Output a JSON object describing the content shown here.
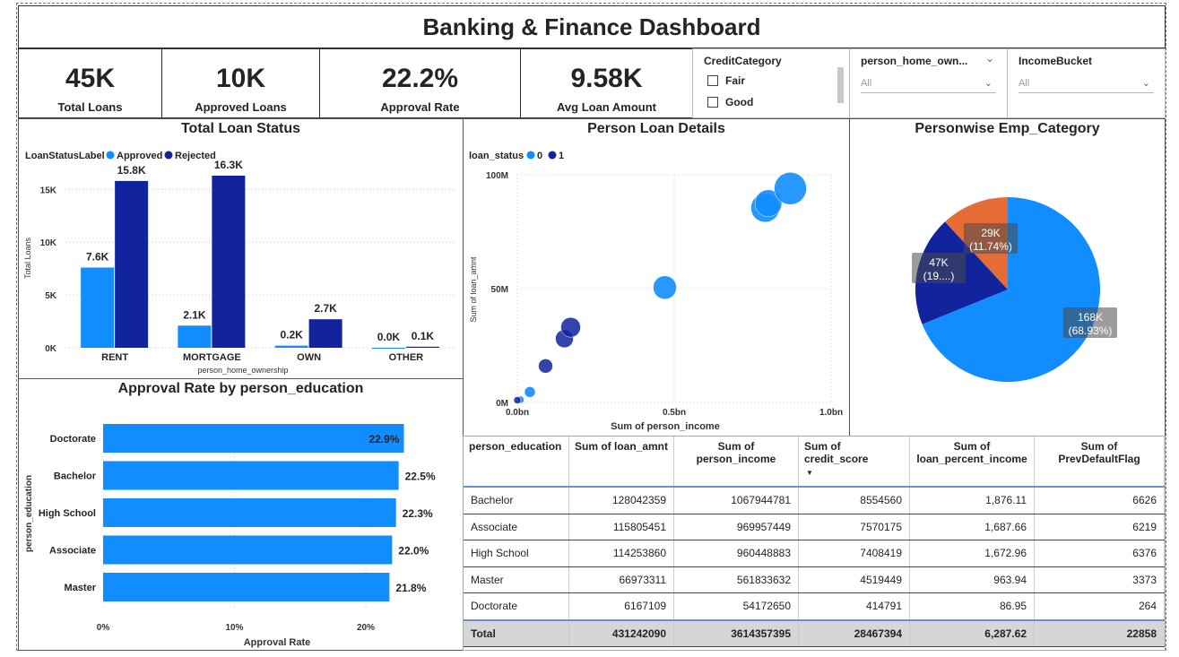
{
  "title": "Banking & Finance Dashboard",
  "kpis": [
    {
      "value": "45K",
      "label": "Total Loans"
    },
    {
      "value": "10K",
      "label": "Approved Loans"
    },
    {
      "value": "22.2%",
      "label": "Approval Rate"
    },
    {
      "value": "9.58K",
      "label": "Avg Loan Amount"
    }
  ],
  "slicers": {
    "credit": {
      "title": "CreditCategory",
      "options": [
        "Fair",
        "Good"
      ]
    },
    "home": {
      "title": "person_home_own...",
      "value": "All"
    },
    "income": {
      "title": "IncomeBucket",
      "value": "All"
    }
  },
  "icons": {
    "chevron": "chevron-down-icon",
    "checkbox": "checkbox-icon"
  },
  "colors": {
    "approved": "#118dff",
    "rejected": "#12239e",
    "orange": "#e66c37"
  },
  "loan_status_chart": {
    "title": "Total Loan Status",
    "legend_title": "LoanStatusLabel",
    "xlabel": "person_home_ownership",
    "ylabel": "Total Loans"
  },
  "scatter_chart": {
    "title": "Person Loan Details",
    "legend_title": "loan_status",
    "xlabel": "Sum of person_income",
    "ylabel": "Sum of loan_amnt"
  },
  "pie_chart": {
    "title": "Personwise Emp_Category"
  },
  "edu_chart": {
    "title": "Approval Rate by person_education",
    "xlabel": "Approval Rate",
    "ylabel": "person_education"
  },
  "chart_data": [
    {
      "type": "bar",
      "title": "Total Loan Status",
      "categories": [
        "RENT",
        "MORTGAGE",
        "OWN",
        "OTHER"
      ],
      "series": [
        {
          "name": "Approved",
          "values": [
            7600,
            2100,
            200,
            0
          ],
          "labels": [
            "7.6K",
            "2.1K",
            "0.2K",
            "0.0K"
          ]
        },
        {
          "name": "Rejected",
          "values": [
            15800,
            16300,
            2700,
            100
          ],
          "labels": [
            "15.8K",
            "16.3K",
            "2.7K",
            "0.1K"
          ]
        }
      ],
      "yticks": [
        0,
        5000,
        10000,
        15000
      ],
      "ytick_labels": [
        "0K",
        "5K",
        "10K",
        "15K"
      ],
      "ylim": [
        0,
        18000
      ],
      "xlabel": "person_home_ownership",
      "ylabel": "Total Loans",
      "legend": "top-left"
    },
    {
      "type": "scatter",
      "title": "Person Loan Details",
      "series": [
        {
          "name": "0",
          "points": [
            {
              "x": 0.01,
              "y": 1.2,
              "size": 4
            },
            {
              "x": 0.04,
              "y": 4.6,
              "size": 6
            },
            {
              "x": 0.47,
              "y": 50.5,
              "size": 13
            },
            {
              "x": 0.79,
              "y": 85.5,
              "size": 16
            },
            {
              "x": 0.8,
              "y": 87.5,
              "size": 15
            },
            {
              "x": 0.87,
              "y": 94.0,
              "size": 18
            }
          ]
        },
        {
          "name": "1",
          "points": [
            {
              "x": 0.0,
              "y": 1.0,
              "size": 4
            },
            {
              "x": 0.09,
              "y": 16.0,
              "size": 8
            },
            {
              "x": 0.15,
              "y": 28.0,
              "size": 10
            },
            {
              "x": 0.17,
              "y": 33.0,
              "size": 11
            }
          ]
        }
      ],
      "xticks": [
        0,
        0.5,
        1.0
      ],
      "xtick_labels": [
        "0.0bn",
        "0.5bn",
        "1.0bn"
      ],
      "yticks": [
        0,
        50,
        100
      ],
      "ytick_labels": [
        "0M",
        "50M",
        "100M"
      ],
      "xlim": [
        0,
        1.0
      ],
      "ylim": [
        0,
        100
      ],
      "xlabel": "Sum of person_income",
      "ylabel": "Sum of loan_amnt",
      "legend": "top-left"
    },
    {
      "type": "pie",
      "title": "Personwise Emp_Category",
      "values": [
        168000,
        47000,
        29000
      ],
      "labels": [
        "168K\n(68.93%)",
        "47K\n(19....)",
        "29K\n(11.74%)"
      ],
      "colors": [
        "#118dff",
        "#12239e",
        "#e66c37"
      ]
    },
    {
      "type": "bar",
      "orientation": "horizontal",
      "title": "Approval Rate by person_education",
      "categories": [
        "Doctorate",
        "Bachelor",
        "High School",
        "Associate",
        "Master"
      ],
      "values": [
        22.9,
        22.5,
        22.3,
        22.0,
        21.8
      ],
      "labels": [
        "22.9%",
        "22.5%",
        "22.3%",
        "22.0%",
        "21.8%"
      ],
      "xticks": [
        0,
        10,
        20
      ],
      "xtick_labels": [
        "0%",
        "10%",
        "20%"
      ],
      "xlim": [
        0,
        24.3
      ],
      "xlabel": "Approval Rate",
      "ylabel": "person_education"
    },
    {
      "type": "table",
      "columns": [
        "person_education",
        "Sum of loan_amnt",
        "Sum of person_income",
        "Sum of credit_score",
        "Sum of loan_percent_income",
        "Sum of PrevDefaultFlag"
      ],
      "rows": [
        [
          "Bachelor",
          "128042359",
          "1067944781",
          "8554560",
          "1,876.11",
          "6626"
        ],
        [
          "Associate",
          "115805451",
          "969957449",
          "7570175",
          "1,687.66",
          "6219"
        ],
        [
          "High School",
          "114253860",
          "960448883",
          "7408419",
          "1,672.96",
          "6376"
        ],
        [
          "Master",
          "66973311",
          "561833632",
          "4519449",
          "963.94",
          "3373"
        ],
        [
          "Doctorate",
          "6167109",
          "54172650",
          "414791",
          "86.95",
          "264"
        ]
      ],
      "total": [
        "Total",
        "431242090",
        "3614357395",
        "28467394",
        "6,287.62",
        "22858"
      ]
    }
  ]
}
